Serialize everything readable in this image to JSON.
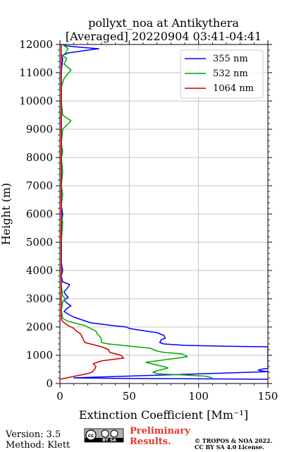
{
  "chart_data": {
    "type": "line",
    "title": "pollyxt_noa at Antikythera",
    "subtitle": "[Averaged] 20220904 03:41-04:41",
    "xlabel": "Extinction Coefficient [Mm⁻¹]",
    "ylabel": "Height (m)",
    "xlim": [
      0,
      150
    ],
    "ylim": [
      0,
      12000
    ],
    "x_ticks": [
      "0",
      "50",
      "100",
      "150"
    ],
    "y_ticks": [
      "0",
      "1000",
      "2000",
      "3000",
      "4000",
      "5000",
      "6000",
      "7000",
      "8000",
      "9000",
      "10000",
      "11000",
      "12000"
    ],
    "grid": true,
    "legend_position": "top-right",
    "series": [
      {
        "name": "355 nm",
        "color": "#0000ff",
        "points": [
          [
            150,
            150
          ],
          [
            120,
            160
          ],
          [
            80,
            170
          ],
          [
            40,
            180
          ],
          [
            10,
            200
          ],
          [
            150,
            420
          ],
          [
            145,
            450
          ],
          [
            143,
            480
          ],
          [
            147,
            520
          ],
          [
            150,
            530
          ],
          [
            150,
            1300
          ],
          [
            120,
            1320
          ],
          [
            90,
            1350
          ],
          [
            75,
            1400
          ],
          [
            72,
            1450
          ],
          [
            73,
            1550
          ],
          [
            76,
            1600
          ],
          [
            75,
            1700
          ],
          [
            70,
            1800
          ],
          [
            63,
            1850
          ],
          [
            56,
            1900
          ],
          [
            50,
            1950
          ],
          [
            48,
            2000
          ],
          [
            38,
            2050
          ],
          [
            30,
            2100
          ],
          [
            22,
            2150
          ],
          [
            16,
            2250
          ],
          [
            10,
            2350
          ],
          [
            6,
            2450
          ],
          [
            3,
            2550
          ],
          [
            5,
            2650
          ],
          [
            8,
            2750
          ],
          [
            5,
            2850
          ],
          [
            3,
            2950
          ],
          [
            6,
            3050
          ],
          [
            4,
            3150
          ],
          [
            3,
            3250
          ],
          [
            5,
            3350
          ],
          [
            7,
            3500
          ],
          [
            2,
            3600
          ],
          [
            1,
            3800
          ],
          [
            2,
            4000
          ],
          [
            1,
            4300
          ],
          [
            1,
            4600
          ],
          [
            1,
            5000
          ],
          [
            1,
            5500
          ],
          [
            2,
            6000
          ],
          [
            1,
            6300
          ],
          [
            1,
            7000
          ],
          [
            1,
            8000
          ],
          [
            1,
            9000
          ],
          [
            1,
            10000
          ],
          [
            1,
            11000
          ],
          [
            2,
            11500
          ],
          [
            1,
            11600
          ],
          [
            6,
            11700
          ],
          [
            20,
            11800
          ],
          [
            28,
            11850
          ],
          [
            15,
            11900
          ],
          [
            5,
            11950
          ],
          [
            2,
            12000
          ]
        ]
      },
      {
        "name": "532 nm",
        "color": "#00aa00",
        "points": [
          [
            110,
            200
          ],
          [
            105,
            260
          ],
          [
            90,
            300
          ],
          [
            75,
            330
          ],
          [
            70,
            350
          ],
          [
            67,
            400
          ],
          [
            70,
            450
          ],
          [
            78,
            550
          ],
          [
            75,
            600
          ],
          [
            70,
            650
          ],
          [
            62,
            750
          ],
          [
            85,
            900
          ],
          [
            92,
            950
          ],
          [
            88,
            1050
          ],
          [
            75,
            1100
          ],
          [
            70,
            1150
          ],
          [
            65,
            1250
          ],
          [
            55,
            1300
          ],
          [
            45,
            1350
          ],
          [
            35,
            1400
          ],
          [
            30,
            1450
          ],
          [
            30,
            1550
          ],
          [
            29,
            1650
          ],
          [
            27,
            1750
          ],
          [
            26,
            1850
          ],
          [
            22,
            1950
          ],
          [
            18,
            2050
          ],
          [
            14,
            2100
          ],
          [
            10,
            2150
          ],
          [
            6,
            2200
          ],
          [
            4,
            2250
          ],
          [
            2,
            2300
          ],
          [
            1,
            2600
          ],
          [
            2,
            2900
          ],
          [
            4,
            3000
          ],
          [
            2,
            3100
          ],
          [
            1,
            3500
          ],
          [
            1,
            4000
          ],
          [
            1,
            4500
          ],
          [
            1,
            5000
          ],
          [
            2,
            5700
          ],
          [
            1,
            6000
          ],
          [
            1,
            6300
          ],
          [
            2,
            6700
          ],
          [
            1,
            7000
          ],
          [
            2,
            7500
          ],
          [
            1,
            8000
          ],
          [
            2,
            8200
          ],
          [
            1,
            8500
          ],
          [
            2,
            9000
          ],
          [
            8,
            9300
          ],
          [
            2,
            9500
          ],
          [
            1,
            10000
          ],
          [
            1,
            10500
          ],
          [
            3,
            10800
          ],
          [
            8,
            11100
          ],
          [
            3,
            11300
          ],
          [
            5,
            11500
          ],
          [
            2,
            11600
          ],
          [
            4,
            11700
          ],
          [
            6,
            11850
          ],
          [
            2,
            12000
          ]
        ]
      },
      {
        "name": "1064 nm",
        "color": "#cc0000",
        "points": [
          [
            0,
            150
          ],
          [
            5,
            200
          ],
          [
            15,
            300
          ],
          [
            20,
            350
          ],
          [
            23,
            400
          ],
          [
            25,
            500
          ],
          [
            26,
            600
          ],
          [
            24,
            700
          ],
          [
            30,
            800
          ],
          [
            38,
            850
          ],
          [
            46,
            900
          ],
          [
            44,
            1000
          ],
          [
            40,
            1050
          ],
          [
            36,
            1100
          ],
          [
            35,
            1200
          ],
          [
            30,
            1300
          ],
          [
            22,
            1400
          ],
          [
            18,
            1450
          ],
          [
            17,
            1550
          ],
          [
            16,
            1650
          ],
          [
            15,
            1750
          ],
          [
            12,
            1850
          ],
          [
            10,
            1950
          ],
          [
            6,
            2050
          ],
          [
            3,
            2150
          ],
          [
            1,
            2250
          ],
          [
            1,
            2500
          ],
          [
            1,
            3000
          ],
          [
            1,
            4000
          ],
          [
            1,
            5000
          ],
          [
            1,
            6000
          ],
          [
            1,
            7000
          ],
          [
            1,
            8000
          ],
          [
            1,
            9000
          ],
          [
            1,
            10000
          ],
          [
            1,
            11000
          ],
          [
            1,
            12000
          ]
        ]
      }
    ]
  },
  "footer": {
    "version": "Version: 3.5",
    "method": "Method: Klett",
    "preliminary_line1": "Preliminary",
    "preliminary_line2": "Results.",
    "copyright_line1": "© TROPOS & NOA 2022.",
    "copyright_line2": "CC BY SA 4.0 License.",
    "license_badge": "BY SA"
  }
}
